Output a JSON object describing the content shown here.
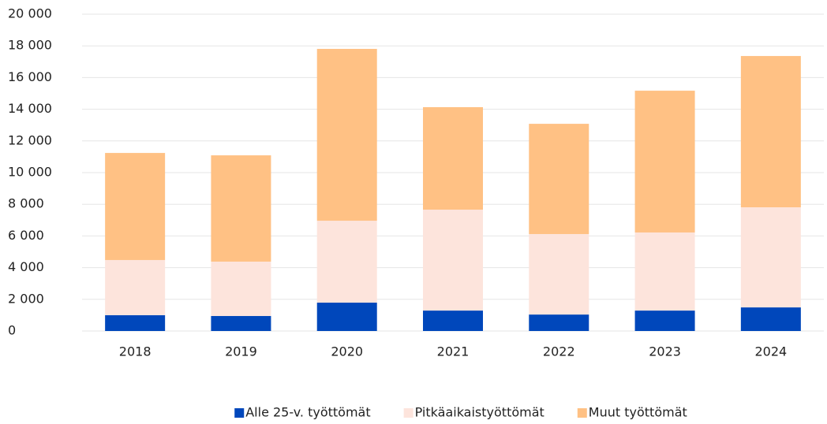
{
  "chart_data": {
    "type": "stacked_bar",
    "categories": [
      "2018",
      "2019",
      "2020",
      "2021",
      "2022",
      "2023",
      "2024"
    ],
    "series": [
      {
        "name": "Alle 25-v. työttömät",
        "color": "#0047bb",
        "values": [
          1000,
          950,
          1790,
          1290,
          1040,
          1290,
          1490
        ]
      },
      {
        "name": "Pitkäaikaistyöttömät",
        "color": "#fde4dc",
        "values": [
          3480,
          3430,
          5170,
          6370,
          5080,
          4930,
          6320
        ]
      },
      {
        "name": "Muut työttömät",
        "color": "#ffc184",
        "values": [
          6760,
          6710,
          10850,
          6470,
          6960,
          8950,
          9550
        ]
      }
    ],
    "ylim": [
      0,
      20000
    ],
    "yticks": [
      0,
      {
        "value": 2000,
        "label": "2 000"
      },
      {
        "value": 4000,
        "label": "4 000"
      },
      {
        "value": 6000,
        "label": "6 000"
      },
      {
        "value": 8000,
        "label": "8 000"
      },
      {
        "value": 10000,
        "label": "10 000"
      },
      {
        "value": 12000,
        "label": "12 000"
      },
      {
        "value": 14000,
        "label": "14 000"
      },
      {
        "value": 16000,
        "label": "16 000"
      },
      {
        "value": 18000,
        "label": "18 000"
      },
      {
        "value": 20000,
        "label": "20 000"
      }
    ],
    "grid": true,
    "legend": "bottom"
  }
}
